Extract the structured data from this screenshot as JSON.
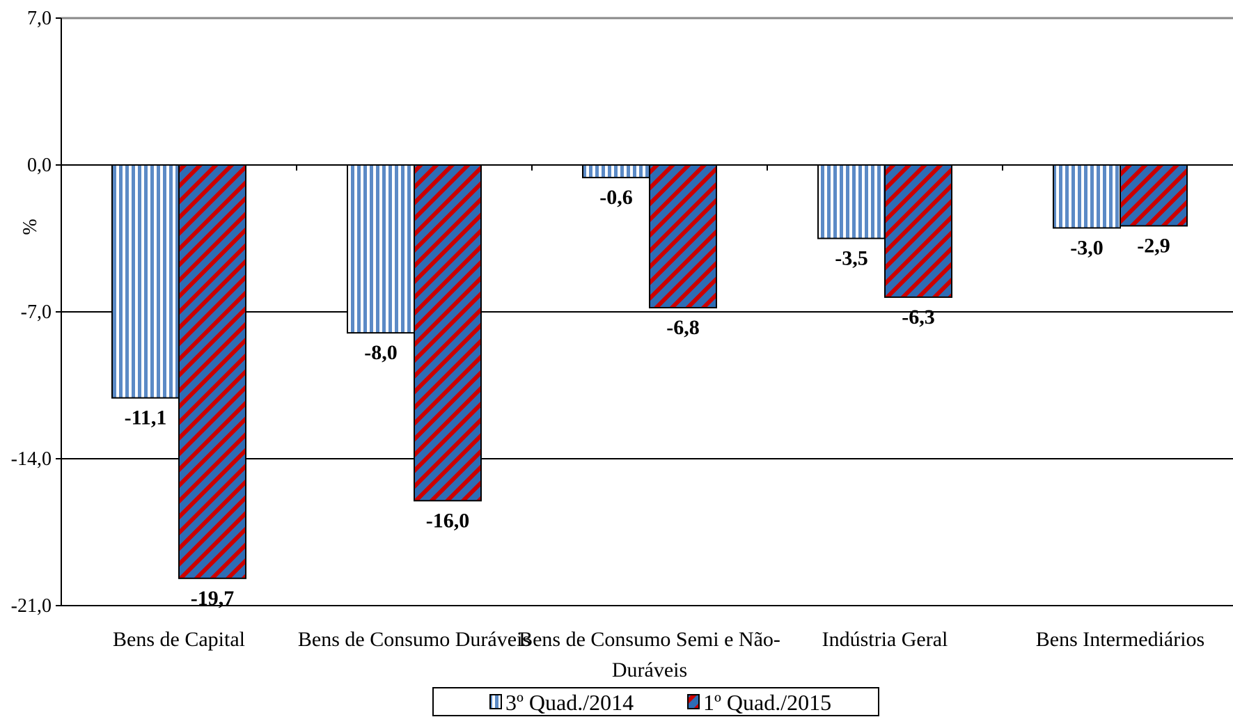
{
  "chart_data": {
    "type": "bar",
    "title": "",
    "xlabel": "",
    "ylabel": "%",
    "ylim": [
      -21.0,
      7.0
    ],
    "yticks": [
      {
        "value": 7.0,
        "label": "7,0"
      },
      {
        "value": 0.0,
        "label": "0,0"
      },
      {
        "value": -7.0,
        "label": "-7,0"
      },
      {
        "value": -14.0,
        "label": "-14,0"
      },
      {
        "value": -21.0,
        "label": "-21,0"
      }
    ],
    "grid": true,
    "legend_position": "bottom",
    "categories": [
      [
        "Bens de Capital"
      ],
      [
        "Bens de Consumo Duráveis"
      ],
      [
        "Bens de Consumo Semi e Não-",
        "Duráveis"
      ],
      [
        "Indústria Geral"
      ],
      [
        "Bens Intermediários"
      ]
    ],
    "series": [
      {
        "name": "3º Quad./2014",
        "values": [
          -11.1,
          -8.0,
          -0.6,
          -3.5,
          -3.0
        ],
        "labels": [
          "-11,1",
          "-8,0",
          "-0,6",
          "-3,5",
          "-3,0"
        ],
        "pattern": "vertical-stripes",
        "color": "#5b8ac6",
        "background": "#ffffff"
      },
      {
        "name": "1º Quad./2015",
        "values": [
          -19.7,
          -16.0,
          -6.8,
          -6.3,
          -2.9
        ],
        "labels": [
          "-19,7",
          "-16,0",
          "-6,8",
          "-6,3",
          "-2,9"
        ],
        "pattern": "diagonal-stripes",
        "color": "#cc0000",
        "background": "#2e6db5"
      }
    ]
  }
}
